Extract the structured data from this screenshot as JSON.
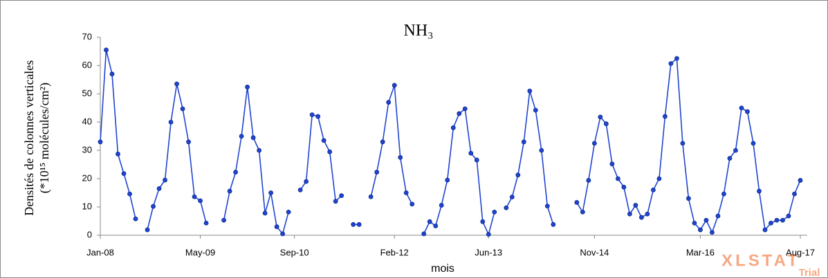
{
  "chart_data": {
    "type": "line",
    "title": "NH₃",
    "y_label_lines": [
      "Densités de colonnes verticales",
      "(*10¹⁵ molécules/cm²)"
    ],
    "x_label": "mois",
    "categories": [
      "Jan-08",
      null,
      null,
      null,
      null,
      null,
      null,
      null,
      null,
      null,
      null,
      null,
      null,
      null,
      null,
      null,
      null,
      "May-09",
      null,
      null,
      null,
      null,
      null,
      null,
      null,
      null,
      null,
      null,
      null,
      null,
      null,
      null,
      null,
      "Sep-10",
      null,
      null,
      null,
      null,
      null,
      null,
      null,
      null,
      null,
      null,
      null,
      null,
      null,
      null,
      null,
      null,
      "Feb-12",
      null,
      null,
      null,
      null,
      null,
      null,
      null,
      null,
      null,
      null,
      null,
      null,
      null,
      null,
      null,
      "Jun-13",
      null,
      null,
      null,
      null,
      null,
      null,
      null,
      null,
      null,
      null,
      null,
      null,
      null,
      null,
      null,
      null,
      null,
      "Nov-14",
      null,
      null,
      null,
      null,
      null,
      null,
      null,
      null,
      null,
      null,
      null,
      null,
      null,
      null,
      null,
      null,
      null,
      "Mar-16",
      null,
      null,
      null,
      null,
      null,
      null,
      null,
      null,
      null,
      null,
      null,
      null,
      null,
      null,
      null,
      null,
      "Aug-17"
    ],
    "series": [
      {
        "color": "#1f44d0",
        "values": [
          33,
          65.5,
          57,
          28.7,
          21.8,
          14.6,
          5.8,
          null,
          1.9,
          10.2,
          16.5,
          19.5,
          40,
          53.5,
          44.7,
          33,
          13.6,
          12.2,
          4.3,
          null,
          null,
          5.3,
          15.6,
          22.3,
          35,
          52.4,
          34.5,
          30,
          7.8,
          15,
          3,
          0.5,
          8.2,
          null,
          16,
          19,
          42.6,
          42,
          33.5,
          29.5,
          12,
          14,
          null,
          3.8,
          3.8,
          null,
          13.6,
          22.3,
          33,
          47,
          53,
          27.5,
          15,
          11,
          null,
          0.5,
          4.8,
          3.3,
          10.6,
          19.5,
          38,
          43,
          44.7,
          29,
          26.6,
          4.8,
          0.3,
          8.2,
          null,
          9.7,
          13.5,
          21.3,
          33,
          51,
          44.2,
          30,
          10.3,
          3.8,
          null,
          null,
          null,
          11.6,
          8.2,
          19.4,
          32.5,
          41.8,
          39.4,
          25.2,
          20,
          17,
          7.5,
          10.6,
          6.3,
          7.5,
          16,
          20,
          42,
          60.7,
          62.5,
          32.5,
          13,
          4.3,
          1.9,
          5.3,
          1,
          6.8,
          14.6,
          27.2,
          30,
          45,
          43.7,
          32.5,
          15.6,
          1.9,
          4.3,
          5.3,
          5.3,
          6.8,
          14.6,
          19.4
        ]
      }
    ],
    "ylim": [
      0,
      70
    ],
    "yticks": [
      0,
      10,
      20,
      30,
      40,
      50,
      60,
      70
    ],
    "watermark": {
      "brand": "XLSTAT",
      "label": "Trial"
    }
  }
}
